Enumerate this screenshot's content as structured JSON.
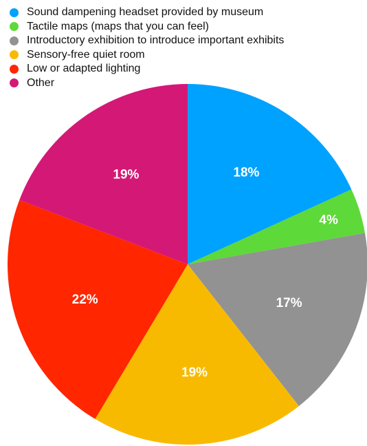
{
  "chart_data": {
    "type": "pie",
    "title": "",
    "legend_position": "top-left",
    "categories": [
      "Sound dampening headset provided by museum",
      "Tactile maps (maps that you can feel)",
      "Introductory exhibition to introduce important exhibits",
      "Sensory-free quiet room",
      "Low or adapted lighting",
      "Other"
    ],
    "values": [
      18,
      4,
      17,
      19,
      22,
      19
    ],
    "value_labels": [
      "18%",
      "4%",
      "17%",
      "19%",
      "22%",
      "19%"
    ],
    "colors": [
      "#00a2ff",
      "#5dd939",
      "#929292",
      "#f8ba00",
      "#ff2600",
      "#d41876"
    ],
    "start_angle_deg": 0,
    "direction": "clockwise"
  }
}
